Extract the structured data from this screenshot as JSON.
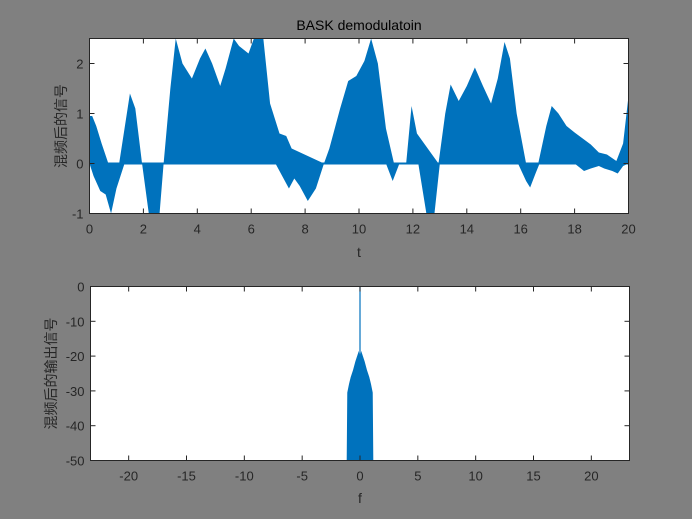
{
  "chart_data": [
    {
      "type": "area",
      "title": "BASK demodulatoin",
      "xlabel": "t",
      "ylabel": "混频后的信号",
      "xlim": [
        0,
        20
      ],
      "ylim": [
        -1,
        2.5
      ],
      "xticks": [
        0,
        2,
        4,
        6,
        8,
        10,
        12,
        14,
        16,
        18,
        20
      ],
      "yticks": [
        -1,
        0,
        1,
        2
      ],
      "grid": false,
      "series_color": "#0072BD",
      "upper_envelope": {
        "x": [
          0,
          0.1,
          0.25,
          0.45,
          0.7,
          1.1,
          1.3,
          1.5,
          1.7,
          1.95,
          2.75,
          3.0,
          3.2,
          3.45,
          3.8,
          4.1,
          4.3,
          4.55,
          4.85,
          5.05,
          5.35,
          5.55,
          5.9,
          6.1,
          6.45,
          6.7,
          7.05,
          7.3,
          7.5,
          8.7,
          8.9,
          9.3,
          9.6,
          9.9,
          10.2,
          10.45,
          10.7,
          11.0,
          11.3,
          11.75,
          11.95,
          12.15,
          12.95,
          13.2,
          13.4,
          13.7,
          14.0,
          14.3,
          14.6,
          14.9,
          15.15,
          15.4,
          15.6,
          15.85,
          16.2,
          16.65,
          16.95,
          17.15,
          17.4,
          17.7,
          18.0,
          18.3,
          18.6,
          18.9,
          19.2,
          19.55,
          19.8,
          20.0
        ],
        "y": [
          0.95,
          0.95,
          0.75,
          0.4,
          0.0,
          0.0,
          0.7,
          1.4,
          1.1,
          0.0,
          0.0,
          1.5,
          2.5,
          2.0,
          1.7,
          2.1,
          2.3,
          2.0,
          1.55,
          1.9,
          2.5,
          2.35,
          2.2,
          2.5,
          2.5,
          1.2,
          0.6,
          0.55,
          0.3,
          0.0,
          0.3,
          1.1,
          1.65,
          1.75,
          2.05,
          2.5,
          2.0,
          0.7,
          0.0,
          0.0,
          1.15,
          0.6,
          0.0,
          1.0,
          1.58,
          1.25,
          1.55,
          1.92,
          1.55,
          1.2,
          1.7,
          2.43,
          2.1,
          1.0,
          0.0,
          0.0,
          0.75,
          1.15,
          1.0,
          0.75,
          0.62,
          0.5,
          0.38,
          0.22,
          0.18,
          0.05,
          0.4,
          1.35
        ]
      },
      "lower_envelope": {
        "x": [
          0,
          0.15,
          0.4,
          0.6,
          0.8,
          1.0,
          1.3,
          1.95,
          2.2,
          2.4,
          2.6,
          2.75,
          6.9,
          7.2,
          7.4,
          7.6,
          7.8,
          8.1,
          8.4,
          8.7,
          11.0,
          11.25,
          11.5,
          12.2,
          12.5,
          12.8,
          13.0,
          15.9,
          16.2,
          16.35,
          16.55,
          16.7,
          18.0,
          18.35,
          18.6,
          18.9,
          19.1,
          19.4,
          19.6,
          19.8,
          20.0
        ],
        "y": [
          0.0,
          -0.25,
          -0.55,
          -0.62,
          -1.0,
          -0.5,
          0.0,
          0.0,
          -1.0,
          -1.0,
          -1.0,
          0.0,
          0.0,
          -0.3,
          -0.5,
          -0.3,
          -0.45,
          -0.75,
          -0.5,
          0.0,
          0.0,
          -0.35,
          0.0,
          0.0,
          -1.0,
          -1.0,
          0.0,
          0.0,
          -0.35,
          -0.48,
          -0.2,
          0.0,
          0.0,
          -0.15,
          -0.1,
          -0.05,
          -0.1,
          -0.15,
          -0.2,
          -0.05,
          0.0
        ]
      }
    },
    {
      "type": "bar",
      "title": "",
      "xlabel": "f",
      "ylabel": "混频后的输出信号",
      "xlim": [
        -23.3,
        23.3
      ],
      "ylim": [
        -50,
        0
      ],
      "xticks": [
        -20,
        -15,
        -10,
        -5,
        0,
        5,
        10,
        15,
        20
      ],
      "yticks": [
        0,
        -10,
        -20,
        -30,
        -40,
        -50
      ],
      "grid": false,
      "series_color": "#0072BD",
      "description": "Spectrum magnitude (dB) concentrated in approx. -1.1 to 1.1, peak 0 dB at f=0, band roughly -30 to -19 dB",
      "envelope": {
        "x": [
          -1.15,
          -1.1,
          -0.95,
          -0.8,
          -0.6,
          -0.4,
          -0.25,
          -0.1,
          -0.02,
          0.0,
          0.02,
          0.1,
          0.25,
          0.4,
          0.6,
          0.8,
          0.95,
          1.1,
          1.15
        ],
        "y": [
          -50,
          -30.5,
          -28,
          -26,
          -24,
          -21.5,
          -20,
          -18.5,
          -20,
          0,
          -20,
          -18.5,
          -20,
          -21.5,
          -24,
          -26,
          -28,
          -30.5,
          -50
        ]
      }
    }
  ],
  "figure": {
    "background": "#808080",
    "axes_background": "#FFFFFF"
  }
}
